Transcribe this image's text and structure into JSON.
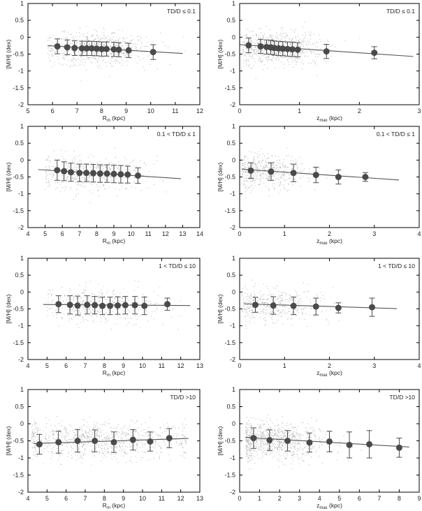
{
  "chart_data": [
    {
      "type": "scatter",
      "label": "TD/D ≤ 0.1",
      "xlabel_main": "R",
      "xlabel_sub": "m",
      "xlabel_unit": "(kpc)",
      "ylabel": "[M/H] (dex)",
      "xlim": [
        5,
        12
      ],
      "xticks": [
        5,
        6,
        7,
        8,
        9,
        10,
        11,
        12
      ],
      "ylim": [
        -2,
        1
      ],
      "yticks": [
        1,
        0.5,
        0,
        -0.5,
        -1,
        -1.5,
        -2
      ],
      "binned": {
        "x": [
          6.2,
          6.6,
          6.9,
          7.2,
          7.4,
          7.6,
          7.8,
          8.0,
          8.2,
          8.5,
          8.7,
          9.1,
          10.1
        ],
        "y": [
          -0.27,
          -0.3,
          -0.32,
          -0.33,
          -0.33,
          -0.33,
          -0.34,
          -0.35,
          -0.35,
          -0.36,
          -0.37,
          -0.39,
          -0.44
        ],
        "err": [
          0.22,
          0.22,
          0.22,
          0.21,
          0.21,
          0.21,
          0.21,
          0.21,
          0.21,
          0.21,
          0.21,
          0.21,
          0.22
        ]
      },
      "fit": {
        "x": [
          5.8,
          11.3
        ],
        "y": [
          -0.25,
          -0.48
        ]
      },
      "scatter_cloud": {
        "xmin": 5.8,
        "xmax": 11.5,
        "center": 7.8,
        "spread": 1.1,
        "ymean": -0.33,
        "ystd": 0.24,
        "n": 700
      }
    },
    {
      "type": "scatter",
      "label": "TD/D ≤ 0.1",
      "xlabel_main": "z",
      "xlabel_sub": "max",
      "xlabel_unit": "(kpc)",
      "ylabel": "[M/H] (dex)",
      "xlim": [
        0,
        3
      ],
      "xticks": [
        0,
        1,
        2,
        3
      ],
      "ylim": [
        -2,
        1
      ],
      "yticks": [
        1,
        0.5,
        0,
        -0.5,
        -1,
        -1.5,
        -2
      ],
      "binned": {
        "x": [
          0.15,
          0.35,
          0.45,
          0.52,
          0.58,
          0.65,
          0.72,
          0.8,
          0.88,
          0.97,
          1.45,
          2.25
        ],
        "y": [
          -0.24,
          -0.27,
          -0.29,
          -0.3,
          -0.32,
          -0.33,
          -0.34,
          -0.35,
          -0.36,
          -0.37,
          -0.42,
          -0.46
        ],
        "err": [
          0.22,
          0.21,
          0.21,
          0.21,
          0.21,
          0.21,
          0.21,
          0.21,
          0.21,
          0.21,
          0.21,
          0.18
        ]
      },
      "fit": {
        "x": [
          0,
          2.9
        ],
        "y": [
          -0.22,
          -0.57
        ]
      },
      "scatter_cloud": {
        "xmin": 0.05,
        "xmax": 2.6,
        "center": 0.6,
        "spread": 0.4,
        "ymean": -0.33,
        "ystd": 0.24,
        "n": 700
      }
    },
    {
      "type": "scatter",
      "label": "0.1 < TD/D ≤ 1",
      "xlabel_main": "R",
      "xlabel_sub": "m",
      "xlabel_unit": "(kpc)",
      "ylabel": "[M/H] (dex)",
      "xlim": [
        4,
        14
      ],
      "xticks": [
        4,
        5,
        6,
        7,
        8,
        9,
        10,
        11,
        12,
        13,
        14
      ],
      "ylim": [
        -2,
        1
      ],
      "yticks": [
        1,
        0.5,
        0,
        -0.5,
        -1,
        -1.5,
        -2
      ],
      "binned": {
        "x": [
          5.7,
          6.1,
          6.5,
          7.0,
          7.4,
          7.8,
          8.2,
          8.6,
          9.0,
          9.4,
          9.8,
          10.4
        ],
        "y": [
          -0.3,
          -0.33,
          -0.36,
          -0.38,
          -0.38,
          -0.39,
          -0.4,
          -0.4,
          -0.41,
          -0.42,
          -0.43,
          -0.46
        ],
        "err": [
          0.3,
          0.28,
          0.27,
          0.26,
          0.26,
          0.26,
          0.26,
          0.26,
          0.26,
          0.26,
          0.25,
          0.23
        ]
      },
      "fit": {
        "x": [
          4.6,
          12.9
        ],
        "y": [
          -0.28,
          -0.55
        ]
      },
      "scatter_cloud": {
        "xmin": 5.0,
        "xmax": 12.5,
        "center": 7.5,
        "spread": 1.6,
        "ymean": -0.38,
        "ystd": 0.26,
        "n": 500
      }
    },
    {
      "type": "scatter",
      "label": "0.1 < TD/D ≤ 1",
      "xlabel_main": "z",
      "xlabel_sub": "max",
      "xlabel_unit": "(kpc)",
      "ylabel": "[M/H] (dex)",
      "xlim": [
        0,
        4
      ],
      "xticks": [
        0,
        1,
        2,
        3,
        4
      ],
      "ylim": [
        -2,
        1
      ],
      "yticks": [
        1,
        0.5,
        0,
        -0.5,
        -1,
        -1.5,
        -2
      ],
      "binned": {
        "x": [
          0.25,
          0.7,
          1.2,
          1.7,
          2.2,
          2.8
        ],
        "y": [
          -0.31,
          -0.34,
          -0.38,
          -0.44,
          -0.5,
          -0.5
        ],
        "err": [
          0.23,
          0.26,
          0.26,
          0.23,
          0.21,
          0.13
        ]
      },
      "fit": {
        "x": [
          0.05,
          3.55
        ],
        "y": [
          -0.27,
          -0.59
        ]
      },
      "scatter_cloud": {
        "xmin": 0.05,
        "xmax": 3.0,
        "center": 0.6,
        "spread": 0.45,
        "ymean": -0.36,
        "ystd": 0.25,
        "n": 500
      }
    },
    {
      "type": "scatter",
      "label": "1 < TD/D ≤ 10",
      "xlabel_main": "R",
      "xlabel_sub": "m",
      "xlabel_unit": "(kpc)",
      "ylabel": "[M/H] (dex)",
      "xlim": [
        4,
        13
      ],
      "xticks": [
        4,
        5,
        6,
        7,
        8,
        9,
        10,
        11,
        12,
        13
      ],
      "ylim": [
        -2,
        1
      ],
      "yticks": [
        1,
        0.5,
        0,
        -0.5,
        -1,
        -1.5,
        -2
      ],
      "binned": {
        "x": [
          5.6,
          6.2,
          6.6,
          7.1,
          7.5,
          7.9,
          8.3,
          8.7,
          9.1,
          9.6,
          10.1,
          11.3
        ],
        "y": [
          -0.36,
          -0.38,
          -0.4,
          -0.38,
          -0.39,
          -0.41,
          -0.41,
          -0.4,
          -0.39,
          -0.39,
          -0.41,
          -0.36
        ],
        "err": [
          0.25,
          0.27,
          0.28,
          0.27,
          0.26,
          0.26,
          0.26,
          0.26,
          0.26,
          0.26,
          0.26,
          0.18
        ]
      },
      "fit": {
        "x": [
          4.8,
          12.5
        ],
        "y": [
          -0.37,
          -0.4
        ]
      },
      "scatter_cloud": {
        "xmin": 5.0,
        "xmax": 12.0,
        "center": 7.8,
        "spread": 1.6,
        "ymean": -0.39,
        "ystd": 0.26,
        "n": 450
      }
    },
    {
      "type": "scatter",
      "label": "1 < TD/D ≤ 10",
      "xlabel_main": "z",
      "xlabel_sub": "max",
      "xlabel_unit": "(kpc)",
      "ylabel": "[M/H] (dex)",
      "xlim": [
        0,
        4
      ],
      "xticks": [
        0,
        1,
        2,
        3,
        4
      ],
      "ylim": [
        -2,
        1
      ],
      "yticks": [
        1,
        0.5,
        0,
        -0.5,
        -1,
        -1.5,
        -2
      ],
      "binned": {
        "x": [
          0.35,
          0.75,
          1.2,
          1.7,
          2.2,
          2.95
        ],
        "y": [
          -0.38,
          -0.4,
          -0.41,
          -0.43,
          -0.47,
          -0.45
        ],
        "err": [
          0.22,
          0.26,
          0.26,
          0.25,
          0.15,
          0.27
        ]
      },
      "fit": {
        "x": [
          0.1,
          3.5
        ],
        "y": [
          -0.35,
          -0.49
        ]
      },
      "scatter_cloud": {
        "xmin": 0.05,
        "xmax": 3.0,
        "center": 0.7,
        "spread": 0.55,
        "ymean": -0.4,
        "ystd": 0.25,
        "n": 450
      }
    },
    {
      "type": "scatter",
      "label": "TD/D >10",
      "xlabel_main": "R",
      "xlabel_sub": "m",
      "xlabel_unit": "(kpc)",
      "ylabel": "[M/H] (dex)",
      "xlim": [
        4,
        13
      ],
      "xticks": [
        4,
        5,
        6,
        7,
        8,
        9,
        10,
        11,
        12,
        13
      ],
      "ylim": [
        -2,
        1
      ],
      "yticks": [
        1,
        0.5,
        0,
        -0.5,
        -1,
        -1.5,
        -2
      ],
      "binned": {
        "x": [
          4.6,
          5.6,
          6.6,
          7.5,
          8.5,
          9.5,
          10.4,
          11.4
        ],
        "y": [
          -0.6,
          -0.54,
          -0.5,
          -0.5,
          -0.54,
          -0.47,
          -0.52,
          -0.42
        ],
        "err": [
          0.29,
          0.32,
          0.33,
          0.32,
          0.3,
          0.3,
          0.28,
          0.28
        ]
      },
      "fit": {
        "x": [
          4.3,
          12.4
        ],
        "y": [
          -0.58,
          -0.43
        ]
      },
      "scatter_cloud": {
        "xmin": 4.2,
        "xmax": 12.3,
        "center": 7.8,
        "spread": 2.3,
        "ymean": -0.5,
        "ystd": 0.27,
        "n": 900
      }
    },
    {
      "type": "scatter",
      "label": "TD/D >10",
      "xlabel_main": "z",
      "xlabel_sub": "max",
      "xlabel_unit": "(kpc)",
      "ylabel": "[M/H] (dex)",
      "xlim": [
        0,
        9
      ],
      "xticks": [
        0,
        1,
        2,
        3,
        4,
        5,
        6,
        7,
        8,
        9
      ],
      "ylim": [
        -2,
        1
      ],
      "yticks": [
        1,
        0.5,
        0,
        -0.5,
        -1,
        -1.5,
        -2
      ],
      "binned": {
        "x": [
          0.7,
          1.5,
          2.4,
          3.5,
          4.5,
          5.5,
          6.5,
          8.0
        ],
        "y": [
          -0.42,
          -0.48,
          -0.5,
          -0.55,
          -0.52,
          -0.62,
          -0.6,
          -0.7
        ],
        "err": [
          0.3,
          0.3,
          0.3,
          0.28,
          0.3,
          0.38,
          0.4,
          0.28
        ]
      },
      "fit": {
        "x": [
          0.3,
          8.5
        ],
        "y": [
          -0.4,
          -0.68
        ]
      },
      "scatter_cloud": {
        "xmin": 0.3,
        "xmax": 8.5,
        "center": 1.8,
        "spread": 1.3,
        "ymean": -0.5,
        "ystd": 0.27,
        "n": 900
      }
    }
  ],
  "style": {
    "point_color": "#b3b3b3",
    "marker_color": "#4a4a4a",
    "line_color": "#555555",
    "frame_color": "#000000",
    "background": "#ffffff"
  }
}
